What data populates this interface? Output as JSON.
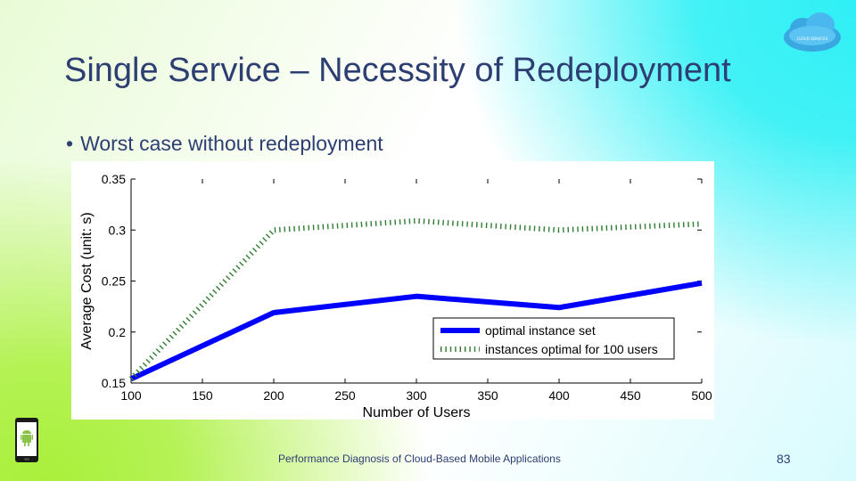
{
  "slide": {
    "title": "Single Service – Necessity of Redeployment",
    "bullet": "Worst case without redeployment",
    "footer": "Performance Diagnosis of Cloud-Based Mobile Applications",
    "page_number": "83",
    "logo_text": "CLOUD SERVICES"
  },
  "colors": {
    "title": "#2d3e72",
    "optimal_series": "#0000ff",
    "fixed_series": "#2e7d32"
  },
  "chart_data": {
    "type": "line",
    "title": "",
    "xlabel": "Number of Users",
    "ylabel": "Average Cost (unit: s)",
    "x": [
      100,
      200,
      300,
      400,
      500
    ],
    "xticks": [
      100,
      150,
      200,
      250,
      300,
      350,
      400,
      450,
      500
    ],
    "yticks": [
      0.15,
      0.2,
      0.25,
      0.3,
      0.35
    ],
    "xlim": [
      100,
      500
    ],
    "ylim": [
      0.15,
      0.35
    ],
    "legend_position": "bottom-right",
    "series": [
      {
        "name": "optimal instance set",
        "values": [
          0.154,
          0.219,
          0.235,
          0.224,
          0.248
        ],
        "style": "solid-thick"
      },
      {
        "name": "instances optimal for 100 users",
        "values": [
          0.154,
          0.3,
          0.309,
          0.3,
          0.306
        ],
        "style": "dashed"
      }
    ]
  }
}
